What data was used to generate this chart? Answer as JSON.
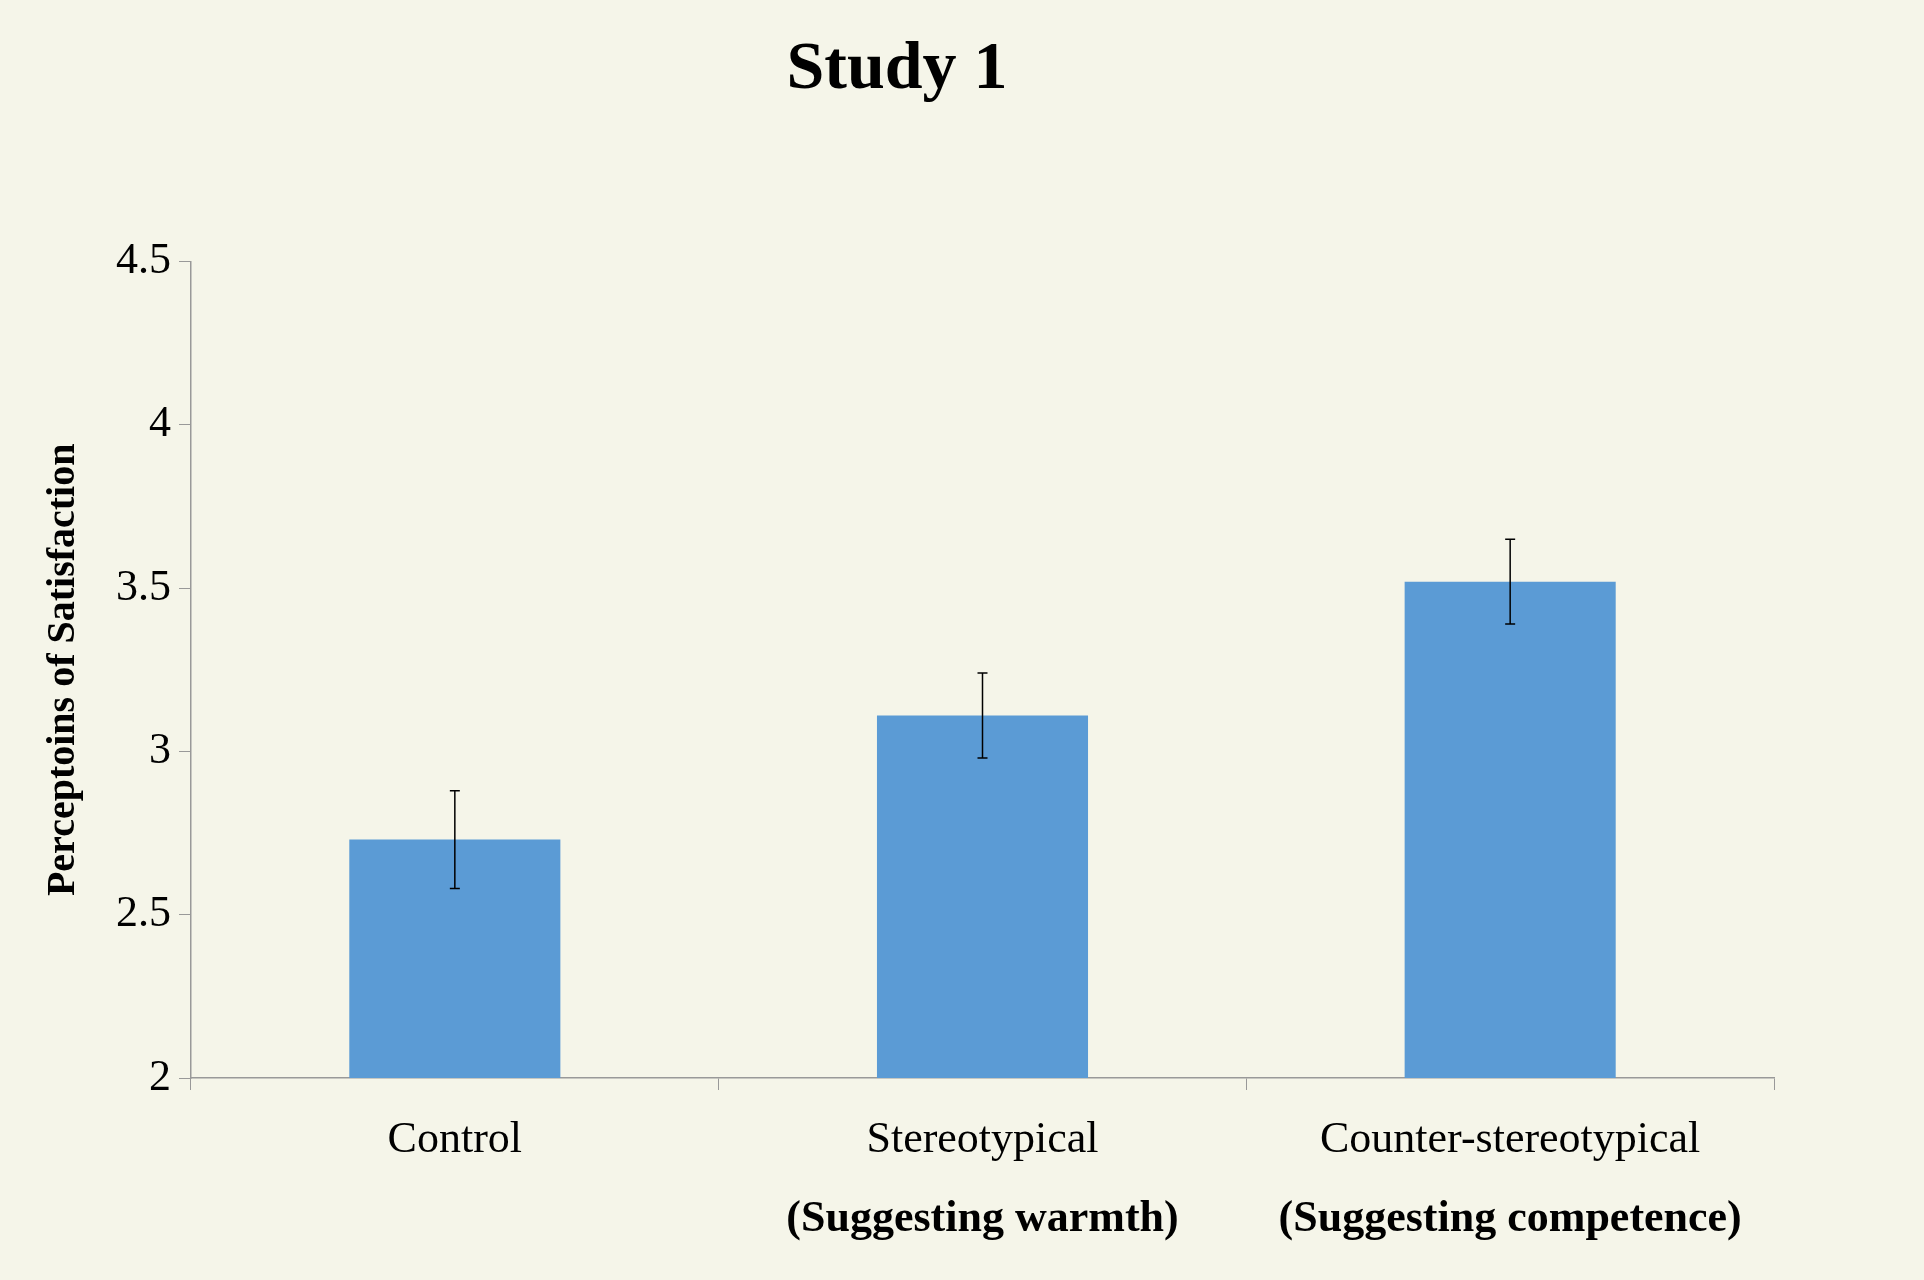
{
  "chart_data": {
    "type": "bar",
    "title": "Study 1",
    "ylabel": "Perceptoins of Satisfaction",
    "categories": [
      "Control",
      "Stereotypical\n(Suggesting warmth)",
      "Counter-stereotypical\n(Suggesting competence)"
    ],
    "values": [
      2.73,
      3.11,
      3.52
    ],
    "errors": [
      0.15,
      0.13,
      0.13
    ],
    "color": "#5b9bd5",
    "ylim": [
      2,
      4.5
    ],
    "yticks": [
      2,
      2.5,
      3,
      3.5,
      4,
      4.5
    ],
    "grid": false,
    "legend": false
  }
}
